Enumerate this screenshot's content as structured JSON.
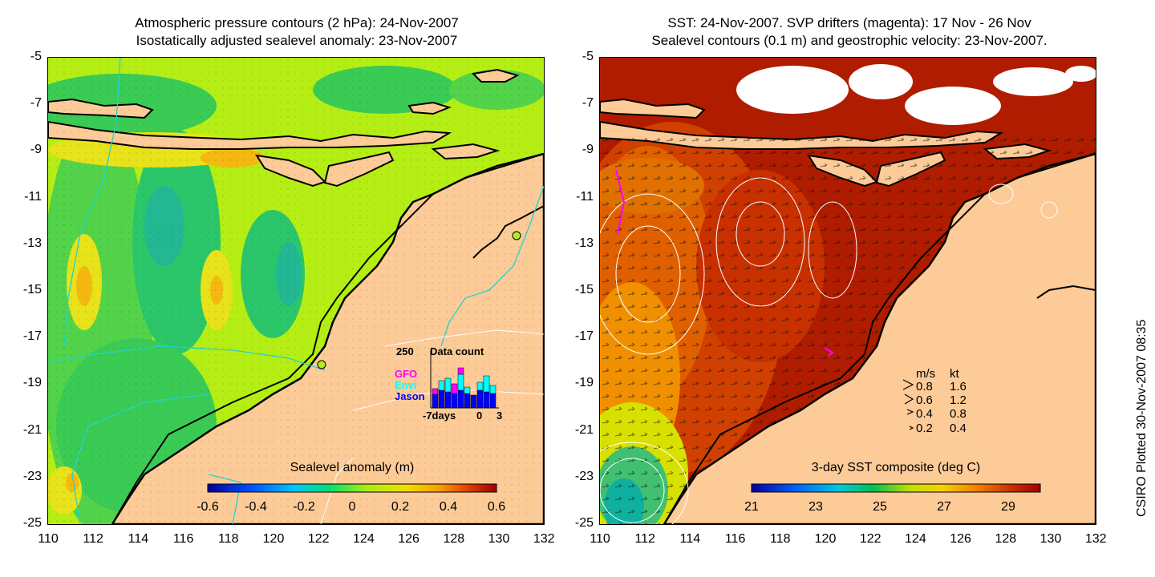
{
  "left_panel": {
    "title_line1": "Atmospheric pressure contours (2 hPa): 24-Nov-2007",
    "title_line2": "Isostatically adjusted sealevel anomaly: 23-Nov-2007",
    "colorbar_label": "Sealevel anomaly (m)",
    "colorbar_ticks": [
      "-0.6",
      "-0.4",
      "-0.2",
      "0",
      "0.2",
      "0.4",
      "0.6"
    ],
    "inset": {
      "count_label": "250",
      "title": "Data count",
      "sat_gfo": "GFO",
      "sat_envi": "Envi",
      "sat_jason": "Jason",
      "x_start": "-7days",
      "x_zero": "0",
      "x_end": "3",
      "colors": {
        "gfo": "#ff00ff",
        "envi": "#00ffff",
        "jason": "#0000ff"
      }
    }
  },
  "right_panel": {
    "title_line1": "SST: 24-Nov-2007. SVP drifters (magenta): 17 Nov - 26 Nov",
    "title_line2": "Sealevel contours (0.1 m) and geostrophic velocity: 23-Nov-2007.",
    "colorbar_label": "3-day SST composite (deg C)",
    "colorbar_ticks": [
      "21",
      "23",
      "25",
      "27",
      "29"
    ],
    "velocity_legend": {
      "header_ms": "m/s",
      "header_kt": "kt",
      "rows": [
        {
          "ms": "0.8",
          "kt": "1.6"
        },
        {
          "ms": "0.6",
          "kt": "1.2"
        },
        {
          "ms": "0.4",
          "kt": "0.8"
        },
        {
          "ms": "0.2",
          "kt": "0.4"
        }
      ]
    }
  },
  "axes": {
    "lat_ticks": [
      "-5",
      "-7",
      "-9",
      "-11",
      "-13",
      "-15",
      "-17",
      "-19",
      "-21",
      "-23",
      "-25"
    ],
    "lon_ticks": [
      "110",
      "112",
      "114",
      "116",
      "118",
      "120",
      "122",
      "124",
      "126",
      "128",
      "130",
      "132"
    ]
  },
  "credit": "CSIRO Plotted 30-Nov-2007 08:35",
  "colors": {
    "land": "#fdcb97",
    "ocean_sla": "#b5ee14",
    "ocean_sst": "#b01c00"
  }
}
